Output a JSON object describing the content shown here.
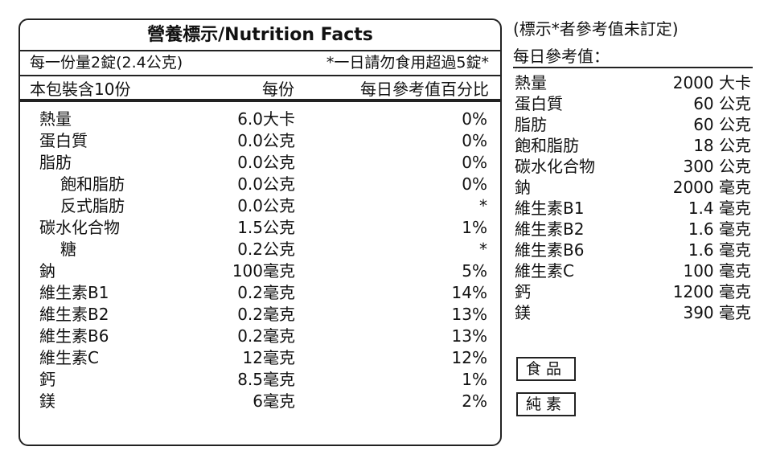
{
  "label": {
    "title": "營養標示/Nutrition Facts",
    "serving": "每一份量2錠(2.4公克)",
    "limit": "*一日請勿食用超過5錠*",
    "package": "本包裝含10份",
    "col_per": "每份",
    "col_dv": "每日參考值百分比",
    "rows": [
      {
        "name": "熱量",
        "amount": "6.0大卡",
        "pct": "0%"
      },
      {
        "name": "蛋白質",
        "amount": "0.0公克",
        "pct": "0%"
      },
      {
        "name": "脂肪",
        "amount": "0.0公克",
        "pct": "0%"
      },
      {
        "name": "飽和脂肪",
        "amount": "0.0公克",
        "pct": "0%"
      },
      {
        "name": "反式脂肪",
        "amount": "0.0公克",
        "pct": "*"
      },
      {
        "name": "碳水化合物",
        "amount": "1.5公克",
        "pct": "1%"
      },
      {
        "name": "糖",
        "amount": "0.2公克",
        "pct": "*"
      },
      {
        "name": "鈉",
        "amount": "100毫克",
        "pct": "5%"
      },
      {
        "name": "維生素B1",
        "amount": "0.2毫克",
        "pct": "14%"
      },
      {
        "name": "維生素B2",
        "amount": "0.2毫克",
        "pct": "13%"
      },
      {
        "name": "維生素B6",
        "amount": "0.2毫克",
        "pct": "13%"
      },
      {
        "name": "維生素C",
        "amount": "12毫克",
        "pct": "12%"
      },
      {
        "name": "鈣",
        "amount": "8.5毫克",
        "pct": "1%"
      },
      {
        "name": "鎂",
        "amount": "6毫克",
        "pct": "2%"
      }
    ]
  },
  "reference": {
    "note": "(標示*者參考值未訂定)",
    "title": "每日參考值：",
    "rows": [
      {
        "name": "熱量",
        "value": "2000 大卡"
      },
      {
        "name": "蛋白質",
        "value": "60 公克"
      },
      {
        "name": "脂肪",
        "value": "60 公克"
      },
      {
        "name": "飽和脂肪",
        "value": "18 公克"
      },
      {
        "name": "碳水化合物",
        "value": "300 公克"
      },
      {
        "name": "鈉",
        "value": "2000 毫克"
      },
      {
        "name": "維生素B1",
        "value": "1.4 毫克"
      },
      {
        "name": "維生素B2",
        "value": "1.6 毫克"
      },
      {
        "name": "維生素B6",
        "value": "1.6 毫克"
      },
      {
        "name": "維生素C",
        "value": "100 毫克"
      },
      {
        "name": "鈣",
        "value": "1200 毫克"
      },
      {
        "name": "鎂",
        "value": "390 毫克"
      }
    ]
  },
  "badges": [
    "食品",
    "純素"
  ]
}
